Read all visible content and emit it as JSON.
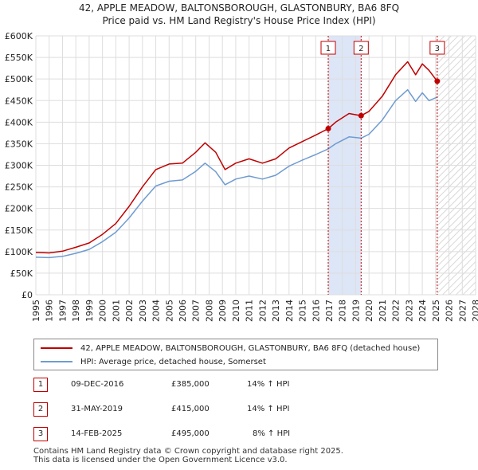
{
  "title_line1": "42, APPLE MEADOW, BALTONSBOROUGH, GLASTONBURY, BA6 8FQ",
  "title_line2": "Price paid vs. HM Land Registry's House Price Index (HPI)",
  "chart_data": {
    "type": "line",
    "title": "42, APPLE MEADOW, BALTONSBOROUGH, GLASTONBURY, BA6 8FQ — Price paid vs. HM Land Registry's House Price Index (HPI)",
    "xlabel": "",
    "ylabel": "",
    "xlim": [
      1995,
      2028
    ],
    "ylim": [
      0,
      600000
    ],
    "y_ticks": [
      0,
      50000,
      100000,
      150000,
      200000,
      250000,
      300000,
      350000,
      400000,
      450000,
      500000,
      550000,
      600000
    ],
    "y_tick_labels": [
      "£0",
      "£50K",
      "£100K",
      "£150K",
      "£200K",
      "£250K",
      "£300K",
      "£350K",
      "£400K",
      "£450K",
      "£500K",
      "£550K",
      "£600K"
    ],
    "x_ticks": [
      1995,
      1996,
      1997,
      1998,
      1999,
      2000,
      2001,
      2002,
      2003,
      2004,
      2005,
      2006,
      2007,
      2008,
      2009,
      2010,
      2011,
      2012,
      2013,
      2014,
      2015,
      2016,
      2017,
      2018,
      2019,
      2020,
      2021,
      2022,
      2023,
      2024,
      2025,
      2026,
      2027,
      2028
    ],
    "grid": true,
    "shaded_period": [
      2016.94,
      2019.41
    ],
    "hatched_after": 2025.12,
    "series": [
      {
        "name": "42, APPLE MEADOW, BALTONSBOROUGH, GLASTONBURY, BA6 8FQ (detached house)",
        "color": "#c00000",
        "x": [
          1995,
          1996,
          1997,
          1998,
          1999,
          2000,
          2001,
          2002,
          2003,
          2004,
          2005,
          2006,
          2007,
          2007.7,
          2008.5,
          2009.2,
          2010,
          2011,
          2012,
          2013,
          2014,
          2015,
          2016,
          2016.94,
          2017.5,
          2018.5,
          2019.41,
          2020,
          2021,
          2022,
          2022.9,
          2023.5,
          2024,
          2024.5,
          2025.12
        ],
        "values": [
          98000,
          97000,
          101000,
          110000,
          120000,
          140000,
          165000,
          205000,
          250000,
          290000,
          303000,
          305000,
          330000,
          352000,
          330000,
          290000,
          305000,
          315000,
          305000,
          315000,
          340000,
          355000,
          370000,
          385000,
          400000,
          420000,
          415000,
          425000,
          460000,
          510000,
          540000,
          510000,
          535000,
          520000,
          495000
        ]
      },
      {
        "name": "HPI: Average price, detached house, Somerset",
        "color": "#6e9bd1",
        "x": [
          1995,
          1996,
          1997,
          1998,
          1999,
          2000,
          2001,
          2002,
          2003,
          2004,
          2005,
          2006,
          2007,
          2007.7,
          2008.5,
          2009.2,
          2010,
          2011,
          2012,
          2013,
          2014,
          2015,
          2016,
          2016.94,
          2017.5,
          2018.5,
          2019.41,
          2020,
          2021,
          2022,
          2022.9,
          2023.5,
          2024,
          2024.5,
          2025.12
        ],
        "values": [
          87000,
          86000,
          89000,
          96000,
          105000,
          123000,
          145000,
          178000,
          217000,
          252000,
          263000,
          266000,
          286000,
          305000,
          285000,
          255000,
          268000,
          275000,
          268000,
          277000,
          298000,
          312000,
          325000,
          338000,
          350000,
          366000,
          363000,
          372000,
          405000,
          450000,
          475000,
          448000,
          468000,
          450000,
          458000
        ]
      }
    ],
    "sales": [
      {
        "label": "1",
        "x": 2016.94,
        "value": 385000
      },
      {
        "label": "2",
        "x": 2019.41,
        "value": 415000
      },
      {
        "label": "3",
        "x": 2025.12,
        "value": 495000
      }
    ]
  },
  "legend": {
    "property": "42, APPLE MEADOW, BALTONSBOROUGH, GLASTONBURY, BA6 8FQ (detached house)",
    "hpi": "HPI: Average price, detached house, Somerset"
  },
  "transactions": [
    {
      "num": "1",
      "date": "09-DEC-2016",
      "price": "£385,000",
      "hpi": "14% ↑ HPI"
    },
    {
      "num": "2",
      "date": "31-MAY-2019",
      "price": "£415,000",
      "hpi": "14% ↑ HPI"
    },
    {
      "num": "3",
      "date": "14-FEB-2025",
      "price": "£495,000",
      "hpi": "8% ↑ HPI"
    }
  ],
  "footer": {
    "line1": "Contains HM Land Registry data © Crown copyright and database right 2025.",
    "line2": "This data is licensed under the Open Government Licence v3.0."
  },
  "colors": {
    "property": "#c00000",
    "hpi": "#6e9bd1",
    "shade": "#dde6f7",
    "grid": "#dddddd"
  }
}
